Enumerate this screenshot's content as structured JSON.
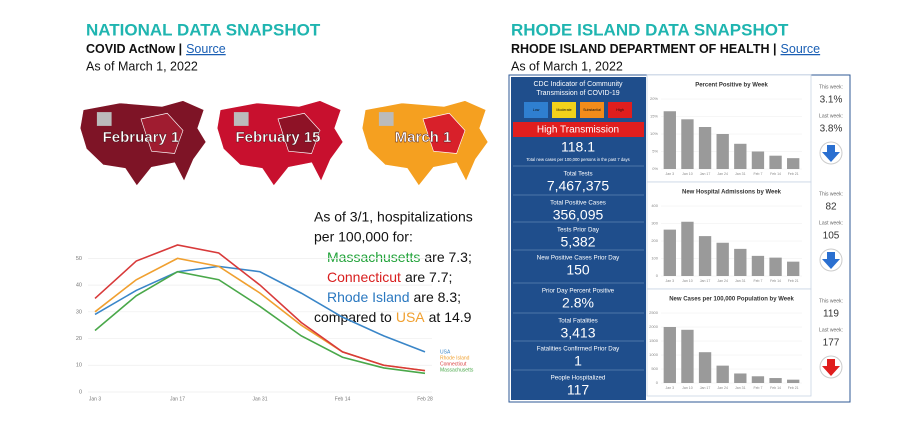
{
  "national": {
    "title": "NATIONAL DATA SNAPSHOT",
    "source_prefix": "COVID ActNow |",
    "source_link": "Source",
    "date": "As of March 1, 2022",
    "maps": [
      "February 1",
      "February 15",
      "March 1"
    ],
    "note": {
      "intro": [
        "As of 3/1, hospitalizations",
        "per 100,000 for:"
      ],
      "items": [
        {
          "name": "Massachusetts",
          "after": "are 7.3;",
          "color": "#22a33a"
        },
        {
          "name": "Connecticut",
          "after": "are 7.7;",
          "color": "#d81e1e"
        },
        {
          "name": "Rhode Island",
          "after": "are 8.3;",
          "color": "#2a78c0"
        },
        {
          "before": "compared to",
          "name": "USA",
          "after": "at 14.9",
          "color": "#f0a030"
        }
      ]
    }
  },
  "rhode_island": {
    "title": "RHODE ISLAND DATA SNAPSHOT",
    "source_prefix": "RHODE ISLAND DEPARTMENT OF HEALTH |",
    "source_link": "Source",
    "date": "As of March 1, 2022",
    "cdc_title": [
      "CDC Indicator of Community",
      "Transmission of COVID-19"
    ],
    "cdc_levels": [
      {
        "label": "Low",
        "color": "#2f7fd0"
      },
      {
        "label": "Moderate",
        "color": "#f2d21b"
      },
      {
        "label": "Substantial",
        "color": "#f28c1b"
      },
      {
        "label": "High",
        "color": "#e01e1e"
      }
    ],
    "level": "High Transmission",
    "rate": "118.1",
    "rate_caption": "Total new cases per 100,000 persons in the past 7 days",
    "stats": [
      {
        "label": "Total Tests",
        "value": "7,467,375"
      },
      {
        "label": "Total Positive Cases",
        "value": "356,095"
      },
      {
        "label": "Tests Prior Day",
        "value": "5,382"
      },
      {
        "label": "New Positive Cases Prior Day",
        "value": "150"
      },
      {
        "label": "Prior Day Percent Positive",
        "value": "2.8%"
      },
      {
        "label": "Total Fatalities",
        "value": "3,413"
      },
      {
        "label": "Fatalities Confirmed Prior Day",
        "value": "1"
      },
      {
        "label": "People Hospitalized",
        "value": "117"
      }
    ],
    "weekly": [
      {
        "this_label": "This week:",
        "this_value": "3.1%",
        "last_label": "Last week:",
        "last_value": "3.8%",
        "arrow_color": "#2a6fd0"
      },
      {
        "this_label": "This week:",
        "this_value": "82",
        "last_label": "Last week:",
        "last_value": "105",
        "arrow_color": "#2a6fd0"
      },
      {
        "this_label": "This week:",
        "this_value": "119",
        "last_label": "Last week:",
        "last_value": "177",
        "arrow_color": "#e01e1e"
      }
    ]
  },
  "chart_data": [
    {
      "type": "line",
      "categories": [
        "Jan 3",
        null,
        "Jan 17",
        null,
        "Jan 31",
        null,
        "Feb 14",
        null,
        "Feb 28"
      ],
      "ylim": [
        0,
        55
      ],
      "yticks": [
        0,
        10,
        20,
        30,
        40,
        50
      ],
      "grid": true,
      "series": [
        {
          "name": "USA",
          "color": "#3a86c8",
          "values": [
            29,
            38,
            45,
            47,
            45,
            37,
            28,
            21,
            15
          ]
        },
        {
          "name": "Rhode Island",
          "color": "#f0a030",
          "values": [
            30,
            42,
            50,
            47,
            37,
            25,
            15,
            10,
            8
          ]
        },
        {
          "name": "Connecticut",
          "color": "#d83a3a",
          "values": [
            35,
            49,
            55,
            52,
            40,
            26,
            15,
            10,
            8
          ]
        },
        {
          "name": "Massachusetts",
          "color": "#4aa84a",
          "values": [
            23,
            36,
            45,
            42,
            32,
            21,
            13,
            9,
            7
          ]
        }
      ]
    },
    {
      "type": "bar",
      "title": "Percent Positive by Week",
      "categories": [
        "Jan 3",
        "Jan 10",
        "Jan 17",
        "Jan 24",
        "Jan 31",
        "Feb 7",
        "Feb 14",
        "Feb 21"
      ],
      "values": [
        16.5,
        14.2,
        12,
        10,
        7.2,
        5,
        3.8,
        3.1
      ],
      "color": "#9a9a9a",
      "ylim": [
        0,
        20
      ],
      "yticks": [
        {
          "value": 0,
          "label": "0%"
        },
        {
          "value": 5,
          "label": "5%"
        },
        {
          "value": 10,
          "label": "10%"
        },
        {
          "value": 15,
          "label": "15%"
        },
        {
          "value": 20,
          "label": "20%"
        }
      ]
    },
    {
      "type": "bar",
      "title": "New Hospital Admissions by Week",
      "categories": [
        "Jan 3",
        "Jan 10",
        "Jan 17",
        "Jan 24",
        "Jan 31",
        "Feb 7",
        "Feb 14",
        "Feb 21"
      ],
      "values": [
        265,
        310,
        228,
        190,
        155,
        115,
        105,
        82
      ],
      "color": "#9a9a9a",
      "ylim": [
        0,
        400
      ],
      "yticks": [
        0,
        100,
        200,
        300,
        400
      ]
    },
    {
      "type": "bar",
      "title": "New Cases per 100,000 Population by Week",
      "categories": [
        "Jan 3",
        "Jan 10",
        "Jan 17",
        "Jan 24",
        "Jan 31",
        "Feb 7",
        "Feb 14",
        "Feb 21"
      ],
      "values": [
        2000,
        1900,
        1100,
        620,
        340,
        240,
        177,
        119
      ],
      "color": "#9a9a9a",
      "ylim": [
        0,
        2500
      ],
      "yticks": [
        0,
        500,
        1000,
        1500,
        2000,
        2500
      ]
    }
  ]
}
